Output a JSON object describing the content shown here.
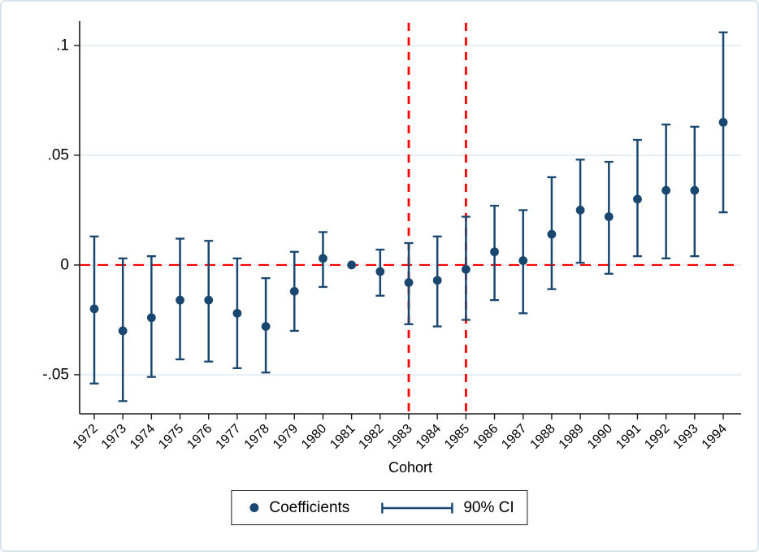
{
  "chart_data": {
    "type": "scatter",
    "title": "",
    "xlabel": "Cohort",
    "ylabel": "",
    "x_categories": [
      "1972",
      "1973",
      "1974",
      "1975",
      "1976",
      "1977",
      "1978",
      "1979",
      "1980",
      "1981",
      "1982",
      "1983",
      "1984",
      "1985",
      "1986",
      "1987",
      "1988",
      "1989",
      "1990",
      "1991",
      "1992",
      "1993",
      "1994"
    ],
    "series": [
      {
        "name": "Coefficients",
        "marker": "circle",
        "points": [
          {
            "x": "1972",
            "coef": -0.02,
            "ci_lo": -0.054,
            "ci_hi": 0.013
          },
          {
            "x": "1973",
            "coef": -0.03,
            "ci_lo": -0.062,
            "ci_hi": 0.003
          },
          {
            "x": "1974",
            "coef": -0.024,
            "ci_lo": -0.051,
            "ci_hi": 0.004
          },
          {
            "x": "1975",
            "coef": -0.016,
            "ci_lo": -0.043,
            "ci_hi": 0.012
          },
          {
            "x": "1976",
            "coef": -0.016,
            "ci_lo": -0.044,
            "ci_hi": 0.011
          },
          {
            "x": "1977",
            "coef": -0.022,
            "ci_lo": -0.047,
            "ci_hi": 0.003
          },
          {
            "x": "1978",
            "coef": -0.028,
            "ci_lo": -0.049,
            "ci_hi": -0.006
          },
          {
            "x": "1979",
            "coef": -0.012,
            "ci_lo": -0.03,
            "ci_hi": 0.006
          },
          {
            "x": "1980",
            "coef": 0.003,
            "ci_lo": -0.01,
            "ci_hi": 0.015
          },
          {
            "x": "1981",
            "coef": 0.0,
            "ci_lo": null,
            "ci_hi": null
          },
          {
            "x": "1982",
            "coef": -0.003,
            "ci_lo": -0.014,
            "ci_hi": 0.007
          },
          {
            "x": "1983",
            "coef": -0.008,
            "ci_lo": -0.027,
            "ci_hi": 0.01
          },
          {
            "x": "1984",
            "coef": -0.007,
            "ci_lo": -0.028,
            "ci_hi": 0.013
          },
          {
            "x": "1985",
            "coef": -0.002,
            "ci_lo": -0.025,
            "ci_hi": 0.022
          },
          {
            "x": "1986",
            "coef": 0.006,
            "ci_lo": -0.016,
            "ci_hi": 0.027
          },
          {
            "x": "1987",
            "coef": 0.002,
            "ci_lo": -0.022,
            "ci_hi": 0.025
          },
          {
            "x": "1988",
            "coef": 0.014,
            "ci_lo": -0.011,
            "ci_hi": 0.04
          },
          {
            "x": "1989",
            "coef": 0.025,
            "ci_lo": 0.001,
            "ci_hi": 0.048
          },
          {
            "x": "1990",
            "coef": 0.022,
            "ci_lo": -0.004,
            "ci_hi": 0.047
          },
          {
            "x": "1991",
            "coef": 0.03,
            "ci_lo": 0.004,
            "ci_hi": 0.057
          },
          {
            "x": "1992",
            "coef": 0.034,
            "ci_lo": 0.003,
            "ci_hi": 0.064
          },
          {
            "x": "1993",
            "coef": 0.034,
            "ci_lo": 0.004,
            "ci_hi": 0.063
          },
          {
            "x": "1994",
            "coef": 0.065,
            "ci_lo": 0.024,
            "ci_hi": 0.106
          }
        ]
      }
    ],
    "ci_level": "90% CI",
    "y_ticks": [
      {
        "value": 0.1,
        "label": ".1"
      },
      {
        "value": 0.05,
        "label": ".05"
      },
      {
        "value": 0,
        "label": "0"
      },
      {
        "value": -0.05,
        "label": "-.05"
      }
    ],
    "ylim": [
      -0.0678,
      0.1111
    ],
    "grid": true,
    "reference_lines": {
      "horizontal": [
        {
          "value": 0,
          "style": "dashed"
        }
      ],
      "vertical": [
        {
          "x": "1983",
          "style": "dashed"
        },
        {
          "x": "1985",
          "style": "dashed"
        }
      ]
    },
    "legend": {
      "position": "bottom",
      "items": [
        {
          "label": "Coefficients",
          "symbol": "dot"
        },
        {
          "label": "90% CI",
          "symbol": "errorbar"
        }
      ]
    },
    "colors": {
      "marker": "#1a476f",
      "ci": "#1a476f",
      "reference": "#fe0000",
      "grid": "#e7eef5",
      "axis": "#1a1a1a",
      "frame_border": "#d8e4ee"
    }
  }
}
